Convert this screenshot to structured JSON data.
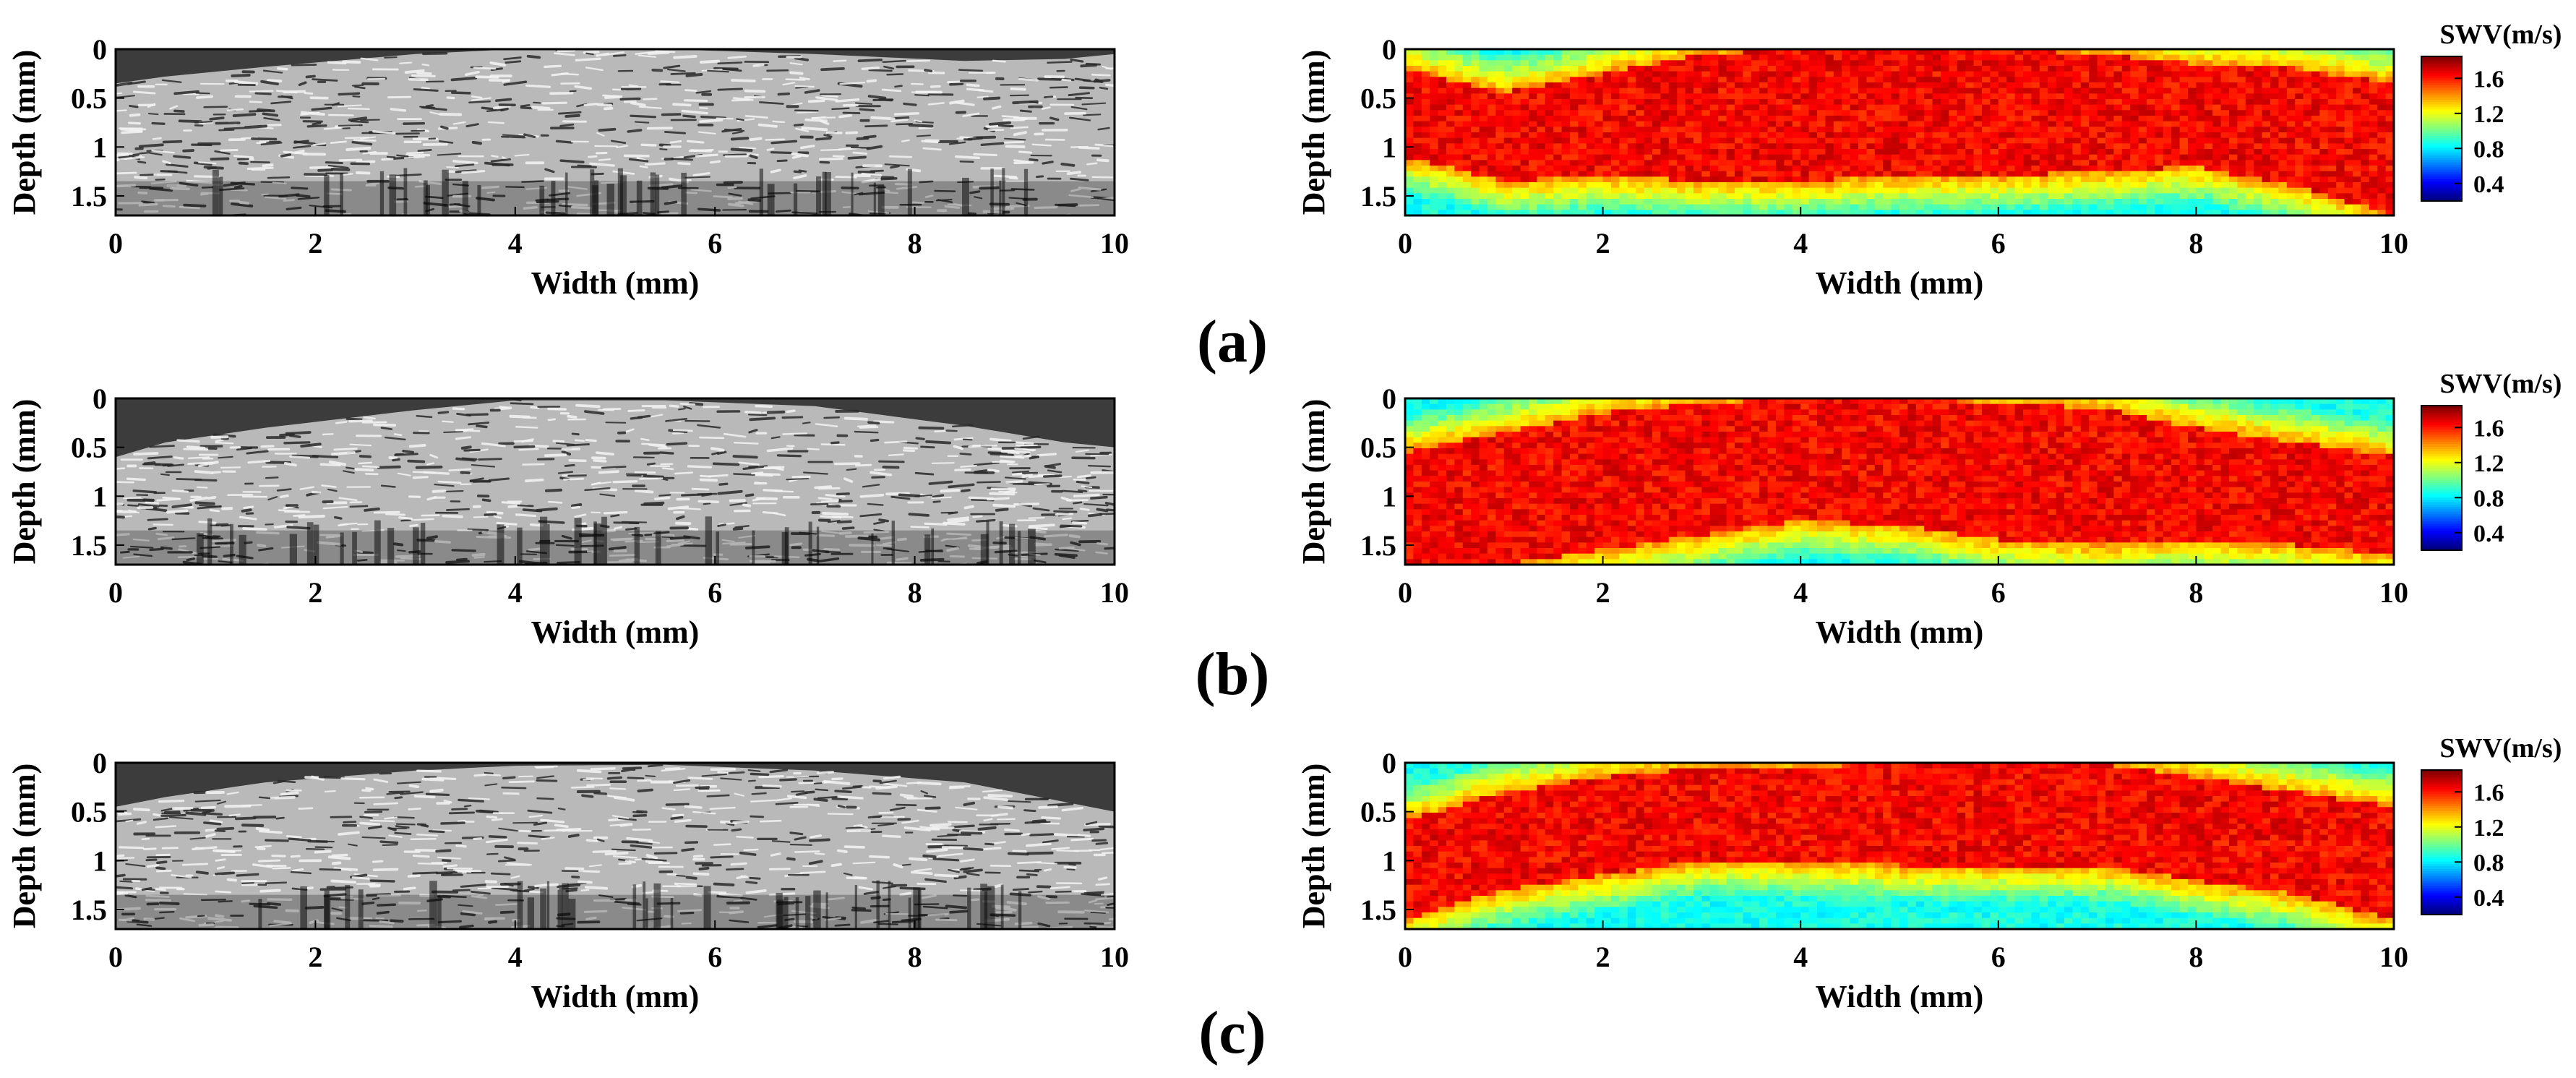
{
  "figure": {
    "panel_labels": [
      "(a)",
      "(b)",
      "(c)"
    ],
    "colorbar_title": "SWV(m/s)",
    "colorbar_ticks": [
      "1.6",
      "1.2",
      "0.8",
      "0.4"
    ],
    "colorbar_range": [
      0.2,
      1.85
    ],
    "colormap": "jet",
    "bmode_colormap": "gray"
  },
  "chart_data": [
    {
      "type": "heatmap",
      "panel": "(a)",
      "image": "B-mode ultrasound",
      "xlabel": "Width (mm)",
      "ylabel": "Depth (mm)",
      "xlim": [
        0,
        10
      ],
      "ylim": [
        1.7,
        0
      ],
      "xticks": [
        "0",
        "2",
        "4",
        "6",
        "8",
        "10"
      ],
      "yticks": [
        "0",
        "0.5",
        "1",
        "1.5"
      ],
      "tissue_top_mm": [
        [
          0,
          0.35
        ],
        [
          0.5,
          0.28
        ],
        [
          1.5,
          0.18
        ],
        [
          3,
          0.05
        ],
        [
          4,
          0.0
        ],
        [
          5.5,
          0.0
        ],
        [
          7,
          0.05
        ],
        [
          8.5,
          0.12
        ],
        [
          9.5,
          0.1
        ],
        [
          10,
          0.05
        ]
      ]
    },
    {
      "type": "heatmap",
      "panel": "(a)",
      "image": "SWV map",
      "xlabel": "Width (mm)",
      "ylabel": "Depth (mm)",
      "xlim": [
        0,
        10
      ],
      "ylim": [
        1.7,
        0
      ],
      "xticks": [
        "0",
        "2",
        "4",
        "6",
        "8",
        "10"
      ],
      "yticks": [
        "0",
        "0.5",
        "1",
        "1.5"
      ],
      "colorbar": {
        "title": "SWV(m/s)",
        "ticks": [
          1.6,
          1.2,
          0.8,
          0.4
        ]
      },
      "stiff_band_mm": [
        [
          0,
          0.2,
          1.1
        ],
        [
          1,
          0.45,
          1.35
        ],
        [
          2,
          0.25,
          1.3
        ],
        [
          3,
          0.05,
          1.35
        ],
        [
          4,
          0.0,
          1.35
        ],
        [
          5,
          0.0,
          1.3
        ],
        [
          6,
          0.0,
          1.3
        ],
        [
          7,
          0.05,
          1.25
        ],
        [
          8,
          0.15,
          1.2
        ],
        [
          9,
          0.2,
          1.4
        ],
        [
          10,
          0.35,
          1.7
        ]
      ]
    },
    {
      "type": "heatmap",
      "panel": "(b)",
      "image": "B-mode ultrasound",
      "xlabel": "Width (mm)",
      "ylabel": "Depth (mm)",
      "xlim": [
        0,
        10
      ],
      "ylim": [
        1.7,
        0
      ],
      "xticks": [
        "0",
        "2",
        "4",
        "6",
        "8",
        "10"
      ],
      "yticks": [
        "0",
        "0.5",
        "1",
        "1.5"
      ],
      "tissue_top_mm": [
        [
          0,
          0.6
        ],
        [
          0.5,
          0.45
        ],
        [
          1.5,
          0.3
        ],
        [
          3,
          0.12
        ],
        [
          4,
          0.02
        ],
        [
          5.5,
          0.02
        ],
        [
          7,
          0.08
        ],
        [
          8.5,
          0.28
        ],
        [
          9.5,
          0.45
        ],
        [
          10,
          0.5
        ]
      ]
    },
    {
      "type": "heatmap",
      "panel": "(b)",
      "image": "SWV map",
      "xlabel": "Width (mm)",
      "ylabel": "Depth (mm)",
      "xlim": [
        0,
        10
      ],
      "ylim": [
        1.7,
        0
      ],
      "xticks": [
        "0",
        "2",
        "4",
        "6",
        "8",
        "10"
      ],
      "yticks": [
        "0",
        "0.5",
        "1",
        "1.5"
      ],
      "colorbar": {
        "title": "SWV(m/s)",
        "ticks": [
          1.6,
          1.2,
          0.8,
          0.4
        ]
      },
      "stiff_band_mm": [
        [
          0,
          0.55,
          1.7
        ],
        [
          1,
          0.35,
          1.7
        ],
        [
          2,
          0.15,
          1.55
        ],
        [
          3,
          0.05,
          1.4
        ],
        [
          4,
          0.0,
          1.25
        ],
        [
          5,
          0.0,
          1.3
        ],
        [
          6,
          0.05,
          1.45
        ],
        [
          7,
          0.1,
          1.5
        ],
        [
          8,
          0.3,
          1.45
        ],
        [
          9,
          0.45,
          1.5
        ],
        [
          10,
          0.6,
          1.6
        ]
      ]
    },
    {
      "type": "heatmap",
      "panel": "(c)",
      "image": "B-mode ultrasound",
      "xlabel": "Width (mm)",
      "ylabel": "Depth (mm)",
      "xlim": [
        0,
        10
      ],
      "ylim": [
        1.7,
        0
      ],
      "xticks": [
        "0",
        "2",
        "4",
        "6",
        "8",
        "10"
      ],
      "yticks": [
        "0",
        "0.5",
        "1",
        "1.5"
      ],
      "tissue_top_mm": [
        [
          0,
          0.45
        ],
        [
          0.5,
          0.35
        ],
        [
          1.5,
          0.2
        ],
        [
          3,
          0.08
        ],
        [
          4,
          0.03
        ],
        [
          5.5,
          0.02
        ],
        [
          7,
          0.08
        ],
        [
          8.5,
          0.2
        ],
        [
          9.5,
          0.4
        ],
        [
          10,
          0.5
        ]
      ]
    },
    {
      "type": "heatmap",
      "panel": "(c)",
      "image": "SWV map",
      "xlabel": "Width (mm)",
      "ylabel": "Depth (mm)",
      "xlim": [
        0,
        10
      ],
      "ylim": [
        1.7,
        0
      ],
      "xticks": [
        "0",
        "2",
        "4",
        "6",
        "8",
        "10"
      ],
      "yticks": [
        "0",
        "0.5",
        "1",
        "1.5"
      ],
      "colorbar": {
        "title": "SWV(m/s)",
        "ticks": [
          1.6,
          1.2,
          0.8,
          0.4
        ]
      },
      "stiff_band_mm": [
        [
          0,
          0.6,
          1.6
        ],
        [
          1,
          0.3,
          1.3
        ],
        [
          2,
          0.15,
          1.15
        ],
        [
          3,
          0.05,
          1.0
        ],
        [
          4,
          0.05,
          1.0
        ],
        [
          5,
          0.0,
          1.05
        ],
        [
          6,
          0.0,
          1.05
        ],
        [
          7,
          0.0,
          1.05
        ],
        [
          8,
          0.15,
          1.2
        ],
        [
          9,
          0.3,
          1.35
        ],
        [
          10,
          0.45,
          1.6
        ]
      ]
    }
  ]
}
